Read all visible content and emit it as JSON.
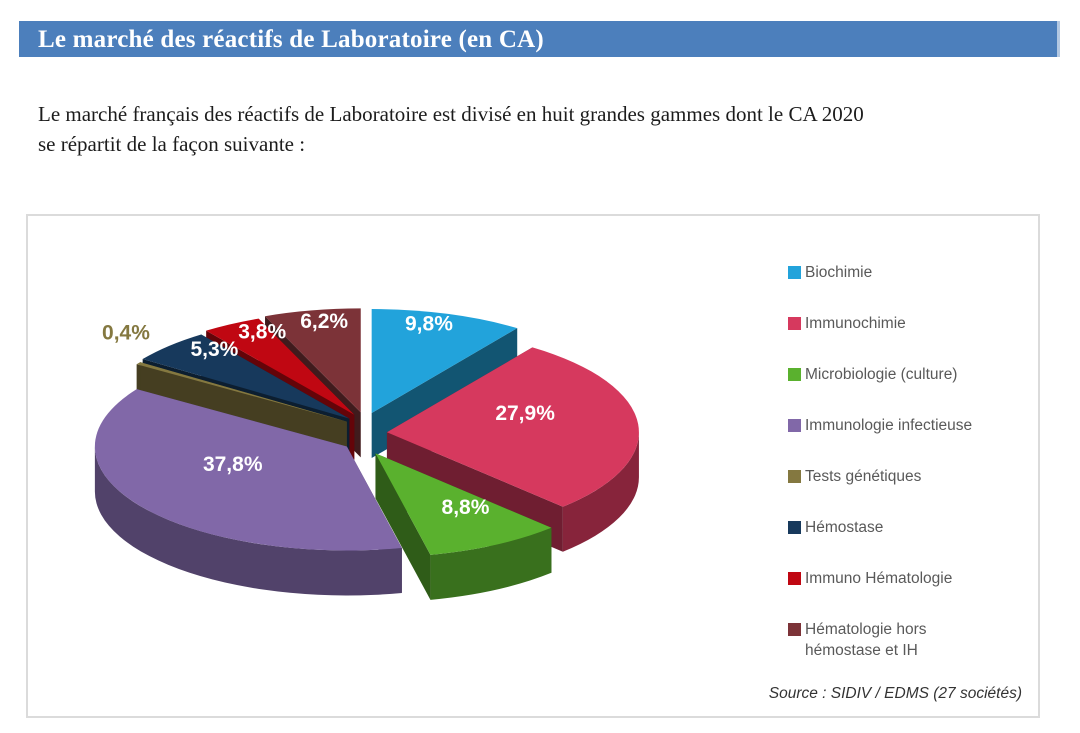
{
  "header": {
    "title": "Le marché des réactifs de Laboratoire (en CA)"
  },
  "intro": {
    "text": "Le marché français des réactifs de Laboratoire est divisé en huit grandes gammes dont le CA 2020\nse répartit de la façon suivante :"
  },
  "source": {
    "text": "Source : SIDIV / EDMS (27 sociétés)"
  },
  "colors": {
    "header_bar": "#4C7FBC",
    "header_text": "#FFFFFF",
    "legend_text": "#595959",
    "chart_border": "#DBDBDB"
  },
  "chart_data": {
    "type": "pie",
    "style": "3d-exploded",
    "start_angle_deg": 0,
    "direction": "clockwise",
    "legend_position": "right",
    "slices": [
      {
        "label": "Biochimie",
        "value": 9.8,
        "pct_label": "9,8%",
        "color": "#22A3DB"
      },
      {
        "label": "Immunochimie",
        "value": 27.9,
        "pct_label": "27,9%",
        "color": "#D6395E"
      },
      {
        "label": "Microbiologie (culture)",
        "value": 8.8,
        "pct_label": "8,8%",
        "color": "#5AB12E"
      },
      {
        "label": "Immunologie infectieuse",
        "value": 37.8,
        "pct_label": "37,8%",
        "color": "#8168A8"
      },
      {
        "label": "Tests génétiques",
        "value": 0.4,
        "pct_label": "0,4%",
        "color": "#847840"
      },
      {
        "label": "Hémostase",
        "value": 5.3,
        "pct_label": "5,3%",
        "color": "#17395C"
      },
      {
        "label": "Immuno Hématologie",
        "value": 3.8,
        "pct_label": "3,8%",
        "color": "#C00712"
      },
      {
        "label": "Hématologie hors\nhémostase et IH",
        "value": 6.2,
        "pct_label": "6,2%",
        "color": "#7C3338"
      }
    ]
  }
}
